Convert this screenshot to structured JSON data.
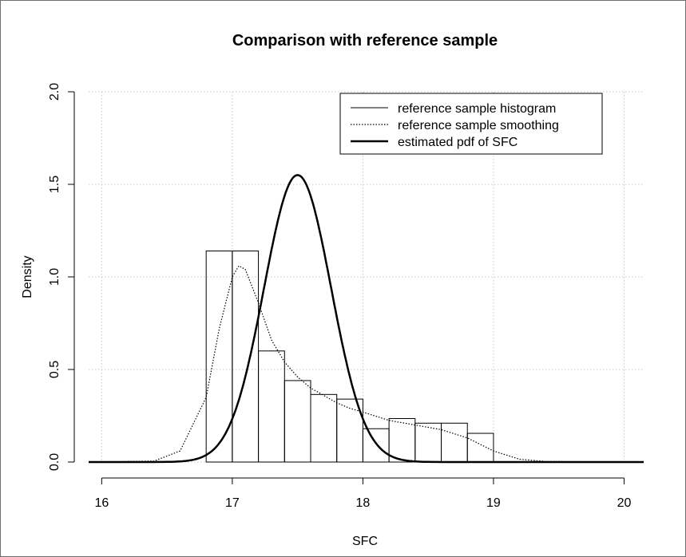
{
  "chart_data": {
    "type": "histogram",
    "title": "Comparison with reference sample",
    "xlabel": "SFC",
    "ylabel": "Density",
    "xlim": [
      15.9,
      20.15
    ],
    "ylim": [
      0,
      2.0
    ],
    "grid": true,
    "legend_position": "top-right",
    "x_ticks": [
      16,
      17,
      18,
      19,
      20
    ],
    "x_tick_labels": [
      "16",
      "17",
      "18",
      "19",
      "20"
    ],
    "y_ticks": [
      0.0,
      0.5,
      1.0,
      1.5,
      2.0
    ],
    "y_tick_labels": [
      "0.0",
      "0.5",
      "1.0",
      "1.5",
      "2.0"
    ],
    "legend": [
      {
        "label": "reference sample histogram",
        "style": "solid-thin"
      },
      {
        "label": "reference sample smoothing",
        "style": "dotted"
      },
      {
        "label": "estimated pdf of SFC",
        "style": "solid-thick"
      }
    ],
    "histogram": {
      "bin_width": 0.2,
      "bins": [
        {
          "x0": 16.8,
          "x1": 17.0,
          "density": 1.14
        },
        {
          "x0": 17.0,
          "x1": 17.2,
          "density": 1.14
        },
        {
          "x0": 17.2,
          "x1": 17.4,
          "density": 0.6
        },
        {
          "x0": 17.4,
          "x1": 17.6,
          "density": 0.44
        },
        {
          "x0": 17.6,
          "x1": 17.8,
          "density": 0.365
        },
        {
          "x0": 17.8,
          "x1": 18.0,
          "density": 0.34
        },
        {
          "x0": 18.0,
          "x1": 18.2,
          "density": 0.18
        },
        {
          "x0": 18.2,
          "x1": 18.4,
          "density": 0.235
        },
        {
          "x0": 18.4,
          "x1": 18.6,
          "density": 0.21
        },
        {
          "x0": 18.6,
          "x1": 18.8,
          "density": 0.21
        },
        {
          "x0": 18.8,
          "x1": 19.0,
          "density": 0.155
        }
      ]
    },
    "smoothing": {
      "x": [
        15.9,
        16.4,
        16.6,
        16.8,
        16.9,
        17.0,
        17.05,
        17.1,
        17.2,
        17.3,
        17.4,
        17.5,
        17.6,
        17.7,
        17.8,
        17.9,
        18.0,
        18.2,
        18.4,
        18.6,
        18.8,
        19.0,
        19.2,
        19.4,
        20.15
      ],
      "y": [
        0.0,
        0.005,
        0.06,
        0.35,
        0.72,
        1.0,
        1.06,
        1.04,
        0.86,
        0.66,
        0.54,
        0.46,
        0.4,
        0.36,
        0.32,
        0.29,
        0.27,
        0.225,
        0.2,
        0.175,
        0.13,
        0.06,
        0.015,
        0.003,
        0.0
      ]
    },
    "estimated_pdf": {
      "mean": 17.5,
      "sd": 0.257,
      "peak_density": 1.55
    }
  }
}
